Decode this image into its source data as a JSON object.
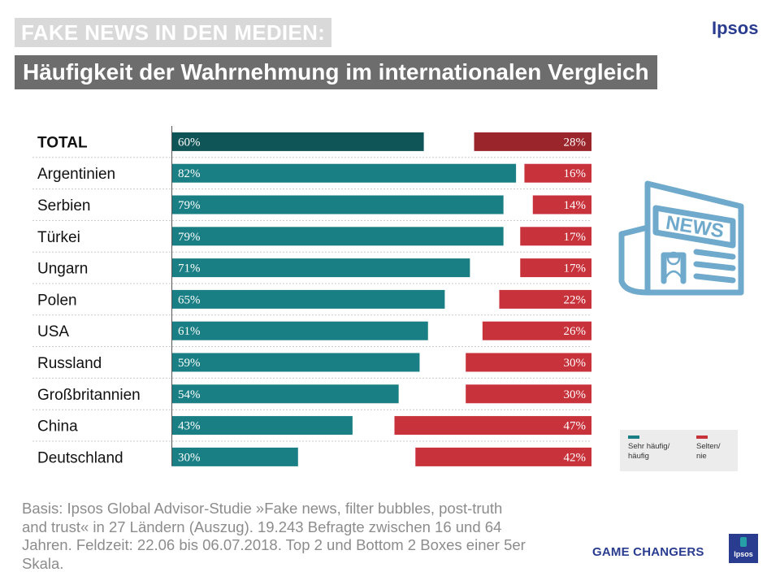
{
  "header": {
    "title": "FAKE NEWS IN DEN MEDIEN:",
    "subtitle": "Häufigkeit der Wahrnehmung im internationalen Vergleich",
    "brand": "Ipsos"
  },
  "chart_data": {
    "type": "bar",
    "orientation": "horizontal",
    "title": "Häufigkeit der Wahrnehmung im internationalen Vergleich",
    "categories": [
      "TOTAL",
      "Argentinien",
      "Serbien",
      "Türkei",
      "Ungarn",
      "Polen",
      "USA",
      "Russland",
      "Großbritannien",
      "China",
      "Deutschland"
    ],
    "series": [
      {
        "name": "Sehr häufig/\nhäufig",
        "color": "#1a7f84",
        "highlight_color": "#0f5457",
        "align": "left",
        "values": [
          60,
          82,
          79,
          79,
          71,
          65,
          61,
          59,
          54,
          43,
          30
        ],
        "labels": [
          "60%",
          "82%",
          "79%",
          "79%",
          "71%",
          "65%",
          "61%",
          "59%",
          "54%",
          "43%",
          "30%"
        ]
      },
      {
        "name": "Selten/\nnie",
        "color": "#c8323b",
        "highlight_color": "#9a252b",
        "align": "right",
        "values": [
          28,
          16,
          14,
          17,
          17,
          22,
          26,
          30,
          30,
          47,
          42
        ],
        "labels": [
          "28%",
          "16%",
          "14%",
          "17%",
          "17%",
          "22%",
          "26%",
          "30%",
          "30%",
          "47%",
          "42%"
        ]
      }
    ],
    "highlight_category": "TOTAL",
    "xlim": [
      0,
      100
    ],
    "grid": false
  },
  "icon": {
    "name": "newspaper-icon",
    "text": "NEWS",
    "color": "#6fa9cc"
  },
  "footnote": "Basis: Ipsos Global Advisor-Studie »Fake news, filter bubbles, post-truth and trust« in 27 Ländern (Auszug). 19.243 Befragte zwischen 16 und 64 Jahren. Feldzeit: 22.06 bis 06.07.2018. Top 2 und Bottom 2 Boxes einer 5er Skala.",
  "footer": {
    "tagline": "GAME CHANGERS",
    "logo_text": "Ipsos"
  }
}
